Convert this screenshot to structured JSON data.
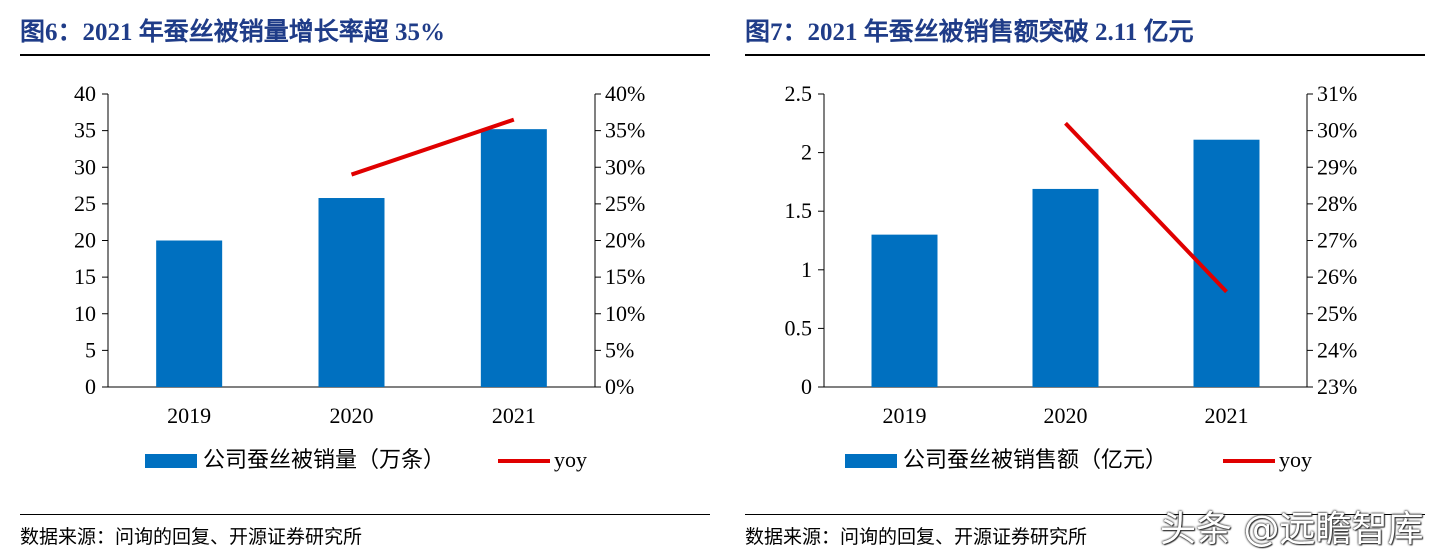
{
  "chart_data": [
    {
      "type": "bar",
      "title": "图6：2021 年蚕丝被销量增长率超 35%",
      "categories": [
        "2019",
        "2020",
        "2021"
      ],
      "series": [
        {
          "name": "公司蚕丝被销量（万条）",
          "type": "bar",
          "axis": "left",
          "values": [
            20,
            25.8,
            35.2
          ],
          "color": "#0070c0"
        },
        {
          "name": "yoy",
          "type": "line",
          "axis": "right",
          "values": [
            null,
            29.0,
            36.5
          ],
          "color": "#e00000"
        }
      ],
      "ylim_left": [
        0,
        40
      ],
      "left_ticks": [
        "0",
        "5",
        "10",
        "15",
        "20",
        "25",
        "30",
        "35",
        "40"
      ],
      "ylim_right": [
        0,
        40
      ],
      "right_ticks": [
        "0%",
        "5%",
        "10%",
        "15%",
        "20%",
        "25%",
        "30%",
        "35%",
        "40%"
      ],
      "source": "数据来源：问询的回复、开源证券研究所"
    },
    {
      "type": "bar",
      "title": "图7：2021 年蚕丝被销售额突破 2.11 亿元",
      "categories": [
        "2019",
        "2020",
        "2021"
      ],
      "series": [
        {
          "name": "公司蚕丝被销售额（亿元）",
          "type": "bar",
          "axis": "left",
          "values": [
            1.3,
            1.69,
            2.11
          ],
          "color": "#0070c0"
        },
        {
          "name": "yoy",
          "type": "line",
          "axis": "right",
          "values": [
            null,
            30.2,
            25.6
          ],
          "color": "#e00000"
        }
      ],
      "ylim_left": [
        0,
        2.5
      ],
      "left_ticks": [
        "0",
        "0.5",
        "1",
        "1.5",
        "2",
        "2.5"
      ],
      "ylim_right": [
        23,
        31
      ],
      "right_ticks": [
        "23%",
        "24%",
        "25%",
        "26%",
        "27%",
        "28%",
        "29%",
        "30%",
        "31%"
      ],
      "source": "数据来源：问询的回复、开源证券研究所"
    }
  ],
  "watermark": "头条 @远瞻智库"
}
